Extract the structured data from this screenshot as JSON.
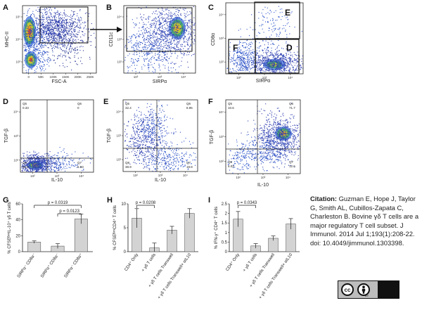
{
  "panels": {
    "A": {
      "letter": "A",
      "xlabel": "FSC-A",
      "ylabel": "MHC-II",
      "xticks": [
        "0",
        "50K",
        "100K",
        "150K",
        "200K",
        "250K"
      ],
      "yticks": [
        "10³",
        "10⁴",
        "10⁵"
      ]
    },
    "B": {
      "letter": "B",
      "xlabel": "SIRPα",
      "ylabel": "CD11c",
      "xticks": [
        "10²",
        "10³",
        "10⁴"
      ],
      "yticks": [
        "10²",
        "10³",
        "10⁴"
      ]
    },
    "C": {
      "letter": "C",
      "xlabel": "SIRPα",
      "ylabel": "CD8α",
      "xticks": [
        "10²",
        "10³",
        "10⁴"
      ],
      "yticks": [
        "10²",
        "10³",
        "10⁴"
      ],
      "gate_E": "E",
      "gate_F": "F",
      "gate_D": "D"
    },
    "D": {
      "letter": "D",
      "xlabel": "IL-10",
      "ylabel": "TGF-β",
      "q5": "Q5",
      "q5v": "0.33",
      "q6": "Q6",
      "q6v": "0",
      "q7": "Q7",
      "q7v": "5.93",
      "q8": "Q8",
      "q8v": "94.6",
      "xticks": [
        "10²",
        "10³",
        "10⁴"
      ],
      "yticks": [
        "10²",
        "10³",
        "10⁴"
      ]
    },
    "E": {
      "letter": "E",
      "xlabel": "IL-10",
      "ylabel": "TGF-β",
      "q5": "Q5",
      "q5v": "32.4",
      "q6": "Q6",
      "q6v": "8.95",
      "q7": "Q7",
      "q7v": "19.8",
      "q8": "Q8",
      "q8v": "38.9",
      "xticks": [
        "10²",
        "10³",
        "10⁴"
      ],
      "yticks": [
        "10²",
        "10³",
        "10⁴"
      ]
    },
    "F": {
      "letter": "F",
      "xlabel": "IL-10",
      "ylabel": "TGF-β",
      "q5": "Q5",
      "q5v": "10.6",
      "q6": "Q6",
      "q6v": "71.7",
      "q7": "Q7",
      "q7v": "12.6",
      "q8": "Q8",
      "q8v": "5.03",
      "xticks": [
        "10²",
        "10³",
        "10⁴"
      ],
      "yticks": [
        "10²",
        "10³",
        "10⁴"
      ]
    }
  },
  "chart_data": [
    {
      "panel": "G",
      "type": "bar",
      "ylabel": "% CFSEᴮᶦᵐIL-10⁺ γδ T cells",
      "categories": [
        "SIRPα⁻ CD8α⁻",
        "SIRPα⁺ CD8α⁻",
        "SIRPα⁻ CD8α⁺"
      ],
      "values": [
        12,
        7,
        41
      ],
      "errors": [
        1.5,
        3,
        6
      ],
      "ylim": [
        0,
        60
      ],
      "yticks": [
        0,
        20,
        40,
        60
      ],
      "annotations": [
        {
          "label": "p = 0.0319",
          "from": 0,
          "to": 2
        },
        {
          "label": "p = 0.0123",
          "from": 1,
          "to": 2
        }
      ]
    },
    {
      "panel": "H",
      "type": "bar",
      "ylabel": "% CFSEᴮᶦᵐCD4⁺ T cells",
      "categories": [
        "CD4⁺ Only",
        "+ γδ T cells",
        "+ γδ T cells Transwell",
        "+ γδ T cells Transwell+ αIL10"
      ],
      "values": [
        7,
        0.8,
        4.5,
        8
      ],
      "errors": [
        2,
        1,
        0.8,
        1
      ],
      "ylim": [
        0,
        10
      ],
      "yticks": [
        0,
        5,
        10
      ],
      "annotations": [
        {
          "label": "p = 0.0208",
          "from": 0,
          "to": 1
        }
      ]
    },
    {
      "panel": "I",
      "type": "bar",
      "ylabel": "% IFN-γ⁺ CD4⁺ T cells",
      "categories": [
        "CD4⁺ Only",
        "+ γδ T cells",
        "+ γδ T cells Transwell",
        "+ γδ T cells Transwell+ αIL10"
      ],
      "values": [
        1.7,
        0.3,
        0.7,
        1.45
      ],
      "errors": [
        0.4,
        0.12,
        0.12,
        0.28
      ],
      "ylim": [
        0,
        2.5
      ],
      "yticks": [
        0,
        0.5,
        1,
        1.5,
        2,
        2.5
      ],
      "annotations": [
        {
          "label": "p = 0.0343",
          "from": 0,
          "to": 1
        }
      ]
    }
  ],
  "citation": {
    "label": "Citation:",
    "text": "Guzman E, Hope J, Taylor G, Smith AL, Cubillos-Zapata C, Charleston B. Bovine γδ T cells are a major regulatory T cell subset. J Immunol. 2014 Jul 1;193(1):208-22. doi: 10.4049/jimmunol.1303398."
  },
  "license": {
    "badge": "cc",
    "sub": "BY",
    "by_icon": "person-icon"
  }
}
